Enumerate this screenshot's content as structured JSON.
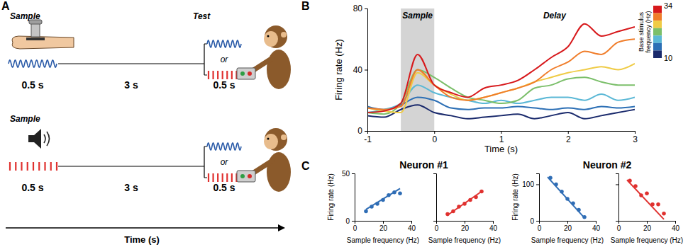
{
  "panels": [
    "A",
    "B",
    "C"
  ],
  "diagram": {
    "rows": [
      {
        "sample": "Sample",
        "sample_duration": "0.5 s",
        "delay": "3 s",
        "test": "Test",
        "or": "or",
        "test_duration": "0.5 s"
      },
      {
        "sample": "Sample",
        "sample_duration": "0.5 s",
        "delay": "3 s",
        "or": "or",
        "test_duration": "0.5 s"
      }
    ],
    "time_label": "Time (s)"
  },
  "chart_data": [
    {
      "type": "line",
      "xlabel": "Time (s)",
      "ylabel": "Firing rate (Hz)",
      "x": [
        -1,
        -0.75,
        -0.5,
        -0.25,
        0,
        0.25,
        0.5,
        0.75,
        1,
        1.25,
        1.5,
        1.75,
        2,
        2.25,
        2.5,
        2.75,
        3
      ],
      "xlim": [
        -1,
        3
      ],
      "xticks": [
        -1,
        0,
        1,
        2,
        3
      ],
      "ylim": [
        0,
        80
      ],
      "yticks": [
        0,
        40,
        80
      ],
      "sample_window": {
        "label": "Sample",
        "x": [
          -0.5,
          0
        ]
      },
      "annotations": [
        "Delay"
      ],
      "colorbar": {
        "label": "Base stimulus frequency (Hz)",
        "range": [
          10,
          34
        ],
        "ticks": [
          10,
          34
        ]
      },
      "series": [
        {
          "color": "#d7191c",
          "values": [
            12,
            13,
            18,
            50,
            30,
            25,
            22,
            28,
            30,
            33,
            40,
            48,
            55,
            70,
            62,
            65,
            68
          ]
        },
        {
          "color": "#f07d2a",
          "values": [
            15,
            14,
            16,
            40,
            30,
            22,
            20,
            22,
            25,
            28,
            32,
            40,
            45,
            52,
            50,
            58,
            60
          ]
        },
        {
          "color": "#efcb45",
          "values": [
            15,
            13,
            12,
            38,
            30,
            24,
            20,
            22,
            25,
            28,
            32,
            35,
            38,
            40,
            42,
            40,
            44
          ]
        },
        {
          "color": "#7bbf6a",
          "values": [
            12,
            11,
            18,
            40,
            35,
            28,
            22,
            20,
            18,
            20,
            28,
            30,
            34,
            35,
            32,
            30,
            30
          ]
        },
        {
          "color": "#5bb8d6",
          "values": [
            12,
            14,
            18,
            30,
            25,
            22,
            20,
            18,
            20,
            18,
            20,
            22,
            22,
            20,
            24,
            20,
            22
          ]
        },
        {
          "color": "#2c6fb5",
          "values": [
            16,
            14,
            17,
            22,
            20,
            15,
            14,
            15,
            15,
            16,
            15,
            14,
            15,
            14,
            16,
            15,
            16
          ]
        },
        {
          "color": "#1a2a6c",
          "values": [
            10,
            9,
            14,
            17,
            12,
            10,
            8,
            9,
            10,
            11,
            8,
            10,
            12,
            8,
            10,
            12,
            14
          ]
        }
      ]
    },
    {
      "type": "scatter",
      "title": "Neuron #1",
      "xlabel": "Sample frequency (Hz)",
      "ylabel": "Firing rate (Hz)",
      "xlim": [
        0,
        40
      ],
      "xticks": [
        0,
        20,
        40
      ],
      "ylim": [
        0,
        50
      ],
      "yticks": [
        0,
        50
      ],
      "series": [
        {
          "type": "scatter",
          "marker": "circle",
          "color": "#2f6db5",
          "x": [
            8,
            12,
            16,
            20,
            24,
            28,
            32
          ],
          "values": [
            10,
            15,
            18,
            22,
            27,
            30,
            29
          ]
        },
        {
          "type": "line",
          "color": "#2f6db5",
          "x": [
            8,
            32
          ],
          "values": [
            12,
            34
          ]
        }
      ]
    },
    {
      "type": "scatter",
      "xlabel": "Sample frequency (Hz)",
      "xlim": [
        0,
        40
      ],
      "xticks": [
        0,
        20,
        40
      ],
      "ylim": [
        0,
        50
      ],
      "yticks": [
        0,
        50
      ],
      "tick_labels": "x",
      "series": [
        {
          "type": "scatter",
          "marker": "circle",
          "color": "#e0312f",
          "x": [
            8,
            12,
            16,
            20,
            24,
            28,
            32
          ],
          "values": [
            7,
            10,
            15,
            18,
            22,
            25,
            31
          ]
        },
        {
          "type": "line",
          "color": "#e0312f",
          "x": [
            8,
            32
          ],
          "values": [
            6,
            31
          ]
        }
      ]
    },
    {
      "type": "scatter",
      "title": "Neuron #2",
      "xlabel": "Sample frequency (Hz)",
      "ylabel": "Firing rate (Hz)",
      "xlim": [
        0,
        40
      ],
      "xticks": [
        0,
        20,
        40
      ],
      "ylim": [
        0,
        130
      ],
      "yticks": [
        0,
        100
      ],
      "series": [
        {
          "type": "scatter",
          "marker": "circle",
          "color": "#2f6db5",
          "x": [
            8,
            12,
            16,
            20,
            24,
            28,
            32
          ],
          "values": [
            118,
            100,
            80,
            60,
            48,
            30,
            10
          ]
        },
        {
          "type": "line",
          "color": "#2f6db5",
          "x": [
            6,
            32
          ],
          "values": [
            120,
            8
          ]
        }
      ]
    },
    {
      "type": "scatter",
      "xlabel": "Sample frequency (Hz)",
      "xlim": [
        0,
        40
      ],
      "xticks": [
        0,
        20,
        40
      ],
      "ylim": [
        0,
        130
      ],
      "yticks": [
        0,
        100
      ],
      "tick_labels": "x",
      "series": [
        {
          "type": "scatter",
          "marker": "circle",
          "color": "#e0312f",
          "x": [
            8,
            12,
            16,
            20,
            24,
            28,
            32
          ],
          "values": [
            110,
            95,
            70,
            75,
            45,
            45,
            20
          ]
        },
        {
          "type": "line",
          "color": "#e0312f",
          "x": [
            6,
            32
          ],
          "values": [
            112,
            4
          ]
        }
      ]
    }
  ]
}
